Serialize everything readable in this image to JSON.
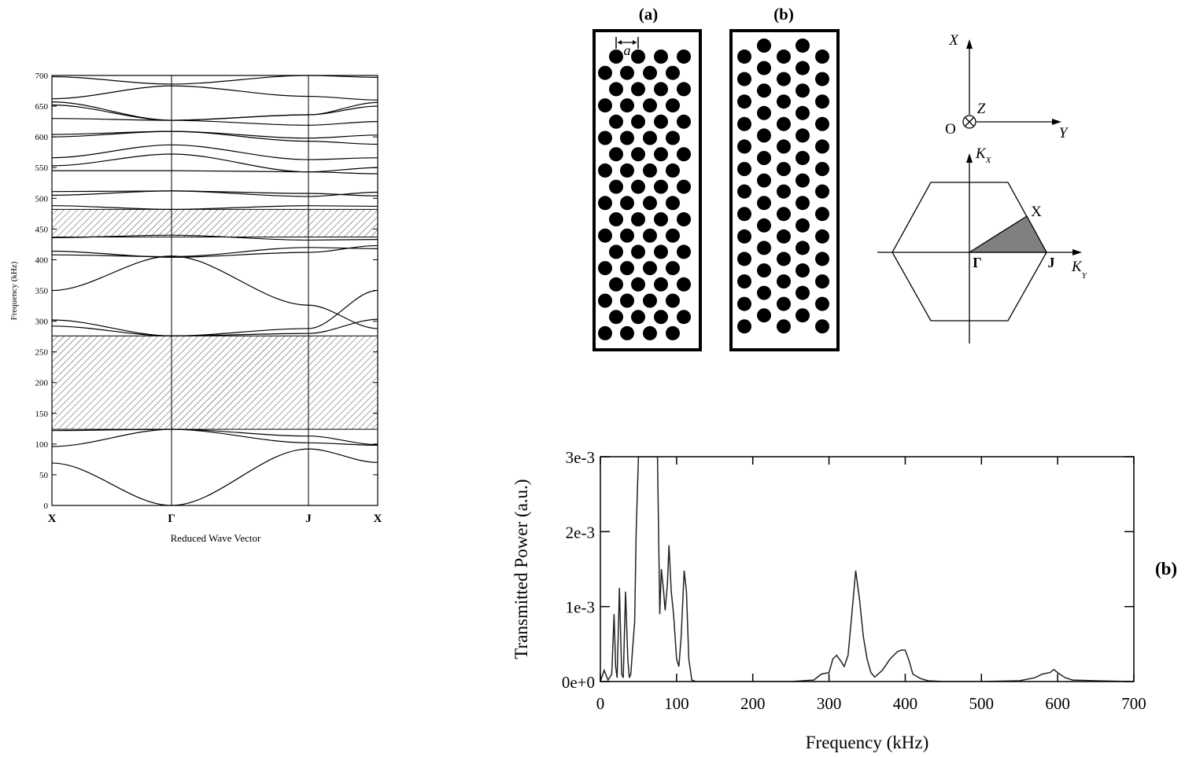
{
  "band_structure": {
    "ylabel": "Frequency (kHz)",
    "xlabel": "Reduced Wave Vector",
    "y_ticks": [
      "0",
      "50",
      "100",
      "150",
      "200",
      "250",
      "300",
      "350",
      "400",
      "450",
      "500",
      "550",
      "600",
      "650",
      "700"
    ],
    "k_points": [
      "X",
      "Γ",
      "J",
      "X"
    ]
  },
  "lattice_panels": {
    "label_a": "(a)",
    "label_b": "(b)",
    "lattice_constant": "a"
  },
  "axes_diagram": {
    "x_label": "X",
    "y_label": "Y",
    "z_label": "Z",
    "origin_label": "O",
    "kx_main": "K",
    "kx_sub": "X",
    "ky_main": "K",
    "ky_sub": "Y",
    "bz_gamma": "Γ",
    "bz_j": "J",
    "bz_x": "X"
  },
  "transmission": {
    "panel_label": "(b)",
    "ylabel": "Transmitted Power (a.u.)",
    "xlabel": "Frequency (kHz)",
    "x_ticks": [
      "0",
      "100",
      "200",
      "300",
      "400",
      "500",
      "600",
      "700"
    ],
    "y_ticks": [
      "0e+0",
      "1e-3",
      "2e-3",
      "3e-3"
    ]
  },
  "chart_data": [
    {
      "type": "line",
      "ylabel": "Frequency (kHz)",
      "xlabel": "Reduced Wave Vector",
      "ylim": [
        0,
        700
      ],
      "x_categories": [
        "X",
        "Γ",
        "J",
        "X"
      ],
      "grid": false,
      "band_gaps": [
        {
          "from": 124,
          "to": 276
        },
        {
          "from": 437,
          "to": 482
        }
      ],
      "bands": [
        {
          "values": [
            69,
            0,
            92,
            70
          ]
        },
        {
          "values": [
            96,
            124,
            102,
            98
          ]
        },
        {
          "values": [
            122,
            124,
            113,
            99
          ]
        },
        {
          "values": [
            292,
            276,
            280,
            303
          ]
        },
        {
          "values": [
            302,
            276,
            288,
            350
          ]
        },
        {
          "values": [
            350,
            406,
            326,
            288
          ]
        },
        {
          "values": [
            408,
            405,
            420,
            418
          ]
        },
        {
          "values": [
            414,
            404,
            412,
            423
          ]
        },
        {
          "values": [
            436,
            440,
            432,
            433
          ]
        },
        {
          "values": [
            488,
            482,
            488,
            487
          ]
        },
        {
          "values": [
            505,
            512,
            503,
            510
          ]
        },
        {
          "values": [
            511,
            512,
            508,
            504
          ]
        },
        {
          "values": [
            545,
            545,
            543,
            550
          ]
        },
        {
          "values": [
            553,
            572,
            543,
            540
          ]
        },
        {
          "values": [
            566,
            587,
            563,
            566
          ]
        },
        {
          "values": [
            600,
            609,
            593,
            588
          ]
        },
        {
          "values": [
            604,
            609,
            598,
            603
          ]
        },
        {
          "values": [
            630,
            627,
            619,
            625
          ]
        },
        {
          "values": [
            652,
            627,
            636,
            650
          ]
        },
        {
          "values": [
            657,
            627,
            636,
            656
          ]
        },
        {
          "values": [
            662,
            683,
            666,
            660
          ]
        },
        {
          "values": [
            698,
            686,
            700,
            697
          ]
        }
      ]
    },
    {
      "type": "line",
      "xlabel": "Frequency (kHz)",
      "ylabel": "Transmitted Power (a.u.)",
      "xlim": [
        0,
        700
      ],
      "ylim": [
        0,
        0.003
      ],
      "grid": false,
      "x": [
        0,
        5,
        10,
        15,
        18,
        20,
        22,
        25,
        28,
        30,
        33,
        36,
        38,
        40,
        42,
        45,
        47,
        50,
        55,
        60,
        65,
        70,
        75,
        78,
        80,
        83,
        85,
        88,
        90,
        93,
        96,
        100,
        103,
        106,
        110,
        113,
        116,
        120,
        125,
        150,
        200,
        250,
        280,
        290,
        300,
        305,
        310,
        315,
        320,
        325,
        330,
        335,
        340,
        345,
        350,
        355,
        360,
        370,
        380,
        390,
        395,
        400,
        405,
        410,
        420,
        430,
        450,
        500,
        550,
        570,
        580,
        590,
        595,
        600,
        610,
        620,
        650,
        700
      ],
      "y": [
        0,
        0.00015,
        2e-05,
        0.0001,
        0.0009,
        0.0002,
        5e-05,
        0.00125,
        0.0001,
        5e-05,
        0.0012,
        0.0003,
        5e-05,
        0.0001,
        0.0004,
        0.0008,
        0.002,
        0.003,
        0.003,
        0.003,
        0.003,
        0.003,
        0.003,
        0.0009,
        0.0015,
        0.0012,
        0.00095,
        0.0013,
        0.00182,
        0.0012,
        0.0009,
        0.0003,
        0.0002,
        0.0006,
        0.00148,
        0.0012,
        0.0003,
        2e-05,
        0,
        0,
        0,
        0,
        2e-05,
        0.0001,
        0.00012,
        0.0003,
        0.00035,
        0.00028,
        0.0002,
        0.00035,
        0.0009,
        0.00148,
        0.0011,
        0.0006,
        0.0003,
        0.00012,
        6e-05,
        0.00015,
        0.0003,
        0.0004,
        0.00042,
        0.00042,
        0.00028,
        0.0001,
        4e-05,
        1e-05,
        0,
        0,
        1e-05,
        5e-05,
        0.0001,
        0.00012,
        0.00016,
        0.00012,
        5e-05,
        2e-05,
        1e-05,
        0
      ]
    }
  ]
}
